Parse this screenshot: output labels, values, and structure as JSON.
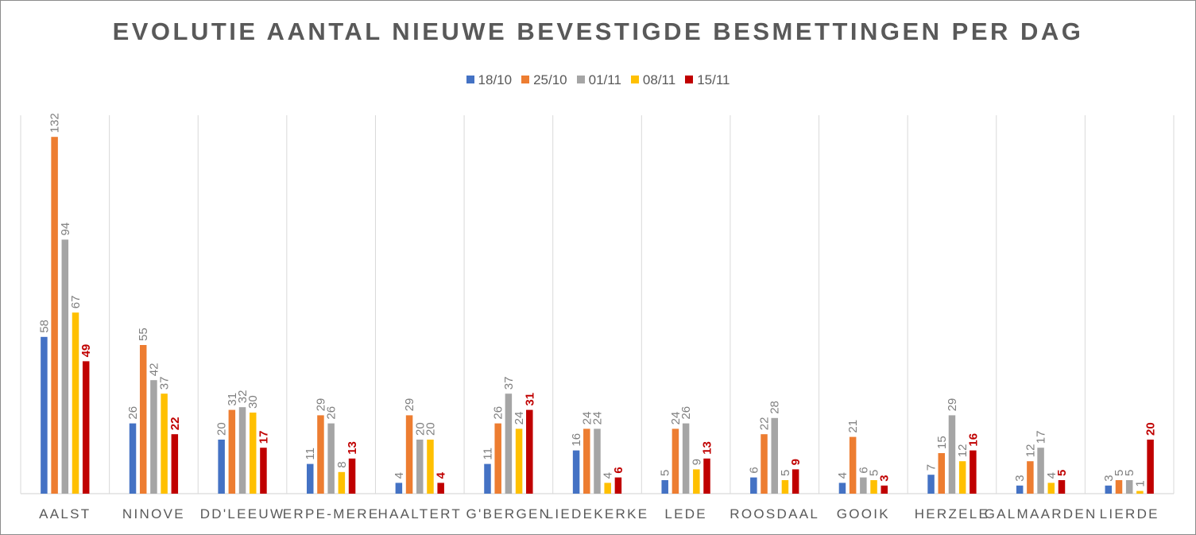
{
  "chart_data": {
    "type": "bar",
    "title": "EVOLUTIE AANTAL NIEUWE BEVESTIGDE BESMETTINGEN PER DAG",
    "xlabel": "",
    "ylabel": "",
    "ylim": [
      0,
      140
    ],
    "legend_position": "top",
    "categories": [
      "AALST",
      "NINOVE",
      "DD'LEEUW",
      "ERPE-MERE",
      "HAALTERT",
      "G'BERGEN",
      "LIEDEKERKE",
      "LEDE",
      "ROOSDAAL",
      "GOOIK",
      "HERZELE",
      "GALMAARDEN",
      "LIERDE"
    ],
    "series": [
      {
        "name": "18/10",
        "color": "#4472c4",
        "label_color": "#7f7f7f",
        "label_bold": false,
        "values": [
          58,
          26,
          20,
          11,
          4,
          11,
          16,
          5,
          6,
          4,
          7,
          3,
          3
        ]
      },
      {
        "name": "25/10",
        "color": "#ed7d31",
        "label_color": "#7f7f7f",
        "label_bold": false,
        "values": [
          132,
          55,
          31,
          29,
          29,
          26,
          24,
          24,
          22,
          21,
          15,
          12,
          5
        ]
      },
      {
        "name": "01/11",
        "color": "#a5a5a5",
        "label_color": "#7f7f7f",
        "label_bold": false,
        "values": [
          94,
          42,
          32,
          26,
          20,
          37,
          24,
          26,
          28,
          6,
          29,
          17,
          5
        ]
      },
      {
        "name": "08/11",
        "color": "#ffc000",
        "label_color": "#7f7f7f",
        "label_bold": false,
        "values": [
          67,
          37,
          30,
          8,
          20,
          24,
          4,
          9,
          5,
          5,
          12,
          4,
          1
        ]
      },
      {
        "name": "15/11",
        "color": "#c00000",
        "label_color": "#c00000",
        "label_bold": true,
        "values": [
          49,
          22,
          17,
          13,
          4,
          31,
          6,
          13,
          9,
          3,
          16,
          5,
          20
        ]
      }
    ]
  }
}
